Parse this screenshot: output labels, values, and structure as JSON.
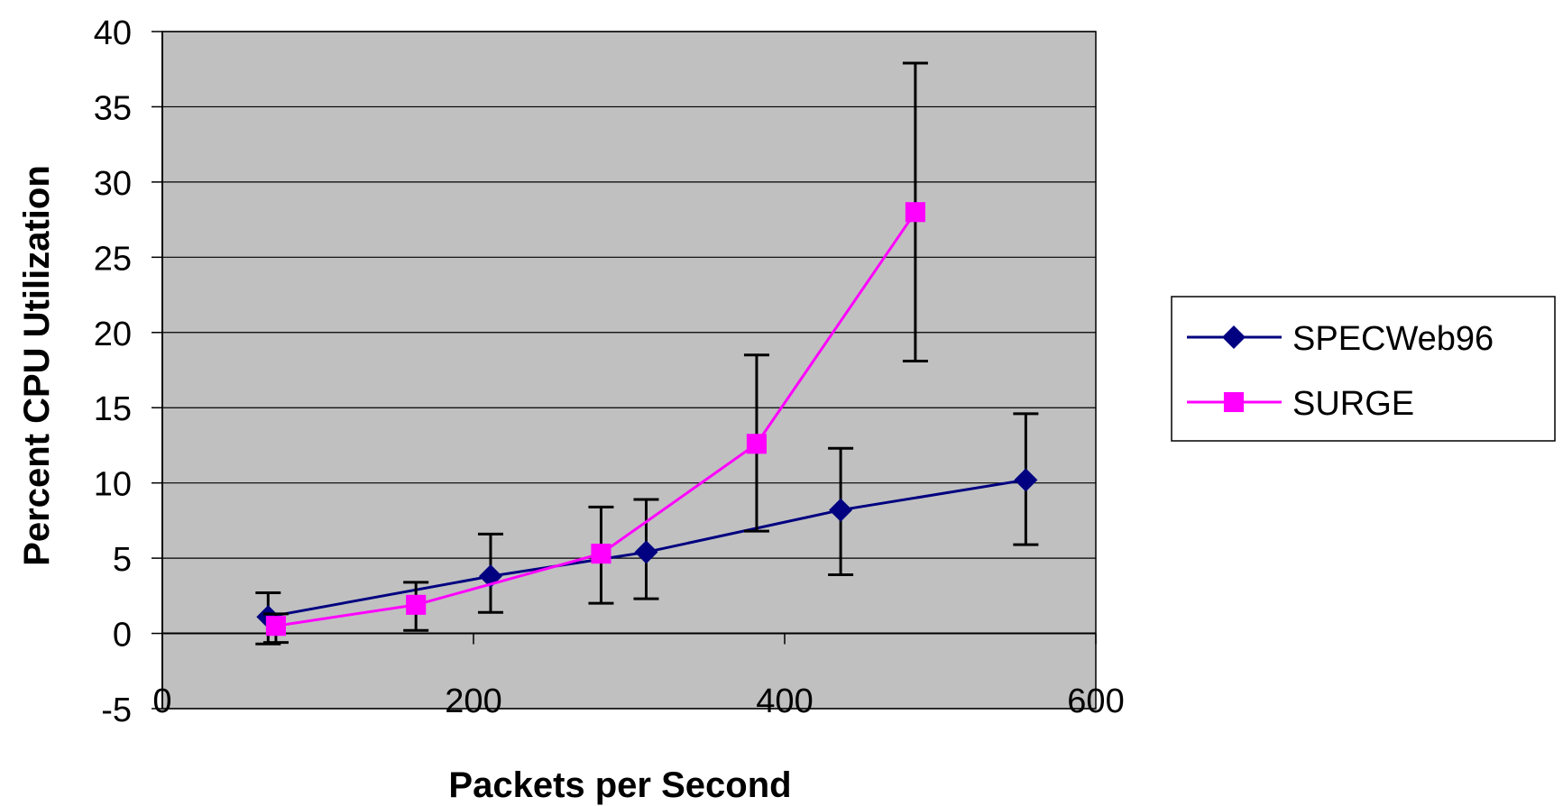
{
  "chart_data": {
    "type": "line",
    "xlabel": "Packets per Second",
    "ylabel": "Percent CPU Utilization",
    "xlim": [
      0,
      600
    ],
    "ylim": [
      -5,
      40
    ],
    "xticks": [
      0,
      200,
      400,
      600
    ],
    "yticks": [
      -5,
      0,
      5,
      10,
      15,
      20,
      25,
      30,
      35,
      40
    ],
    "plot_background": "#c0c0c0",
    "grid": "horizontal",
    "legend_position": "right",
    "series": [
      {
        "name": "SPECWeb96",
        "color": "#000080",
        "marker": "diamond",
        "points": [
          {
            "x": 68,
            "y": 1.1,
            "low": -0.7,
            "high": 2.7
          },
          {
            "x": 211,
            "y": 3.8,
            "low": 1.4,
            "high": 6.6
          },
          {
            "x": 311,
            "y": 5.4,
            "low": 2.3,
            "high": 8.9
          },
          {
            "x": 436,
            "y": 8.2,
            "low": 3.9,
            "high": 12.3
          },
          {
            "x": 555,
            "y": 10.2,
            "low": 5.9,
            "high": 14.6
          }
        ]
      },
      {
        "name": "SURGE",
        "color": "#ff00ff",
        "marker": "square",
        "points": [
          {
            "x": 73,
            "y": 0.5,
            "low": -0.6,
            "high": 1.3
          },
          {
            "x": 163,
            "y": 1.9,
            "low": 0.2,
            "high": 3.4
          },
          {
            "x": 282,
            "y": 5.3,
            "low": 2.0,
            "high": 8.4
          },
          {
            "x": 382,
            "y": 12.6,
            "low": 6.8,
            "high": 18.5
          },
          {
            "x": 484,
            "y": 28.0,
            "low": 18.1,
            "high": 37.9
          }
        ]
      }
    ]
  }
}
